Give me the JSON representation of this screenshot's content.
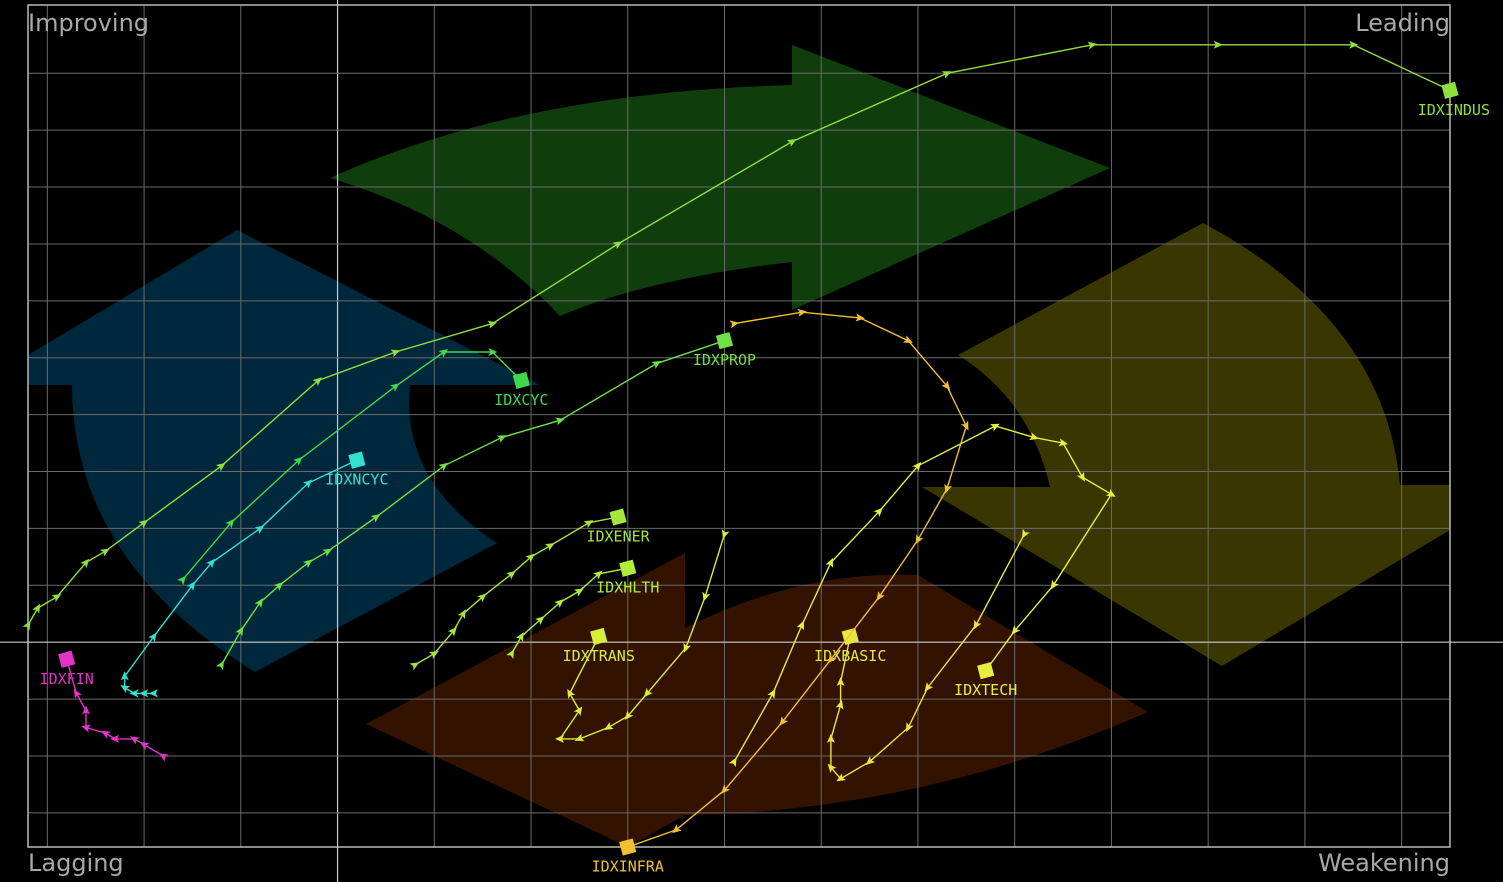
{
  "chart_data": {
    "type": "rrg",
    "quadrants": [
      "Improving",
      "Leading",
      "Lagging",
      "Weakening"
    ],
    "xlim": [
      -3.2,
      11.5
    ],
    "ylim": [
      -3.6,
      11.2
    ],
    "xticks": [
      -3,
      -2,
      -1,
      0,
      1,
      2,
      3,
      4,
      5,
      6,
      7,
      8,
      9,
      10,
      11
    ],
    "yticks": [
      -3,
      -2,
      -1,
      0,
      1,
      2,
      3,
      4,
      5,
      6,
      7,
      8,
      9,
      10
    ],
    "grid": true,
    "series": [
      {
        "name": "IDXINDUS",
        "color": "#8fe03c",
        "x": [
          -3.2,
          -3.1,
          -2.9,
          -2.6,
          -2.4,
          -2.0,
          -1.2,
          -0.2,
          0.6,
          1.6,
          2.9,
          4.7,
          6.3,
          7.8,
          9.1,
          10.5,
          11.5
        ],
        "y": [
          0.3,
          0.6,
          0.8,
          1.4,
          1.6,
          2.1,
          3.1,
          4.6,
          5.1,
          5.6,
          7.0,
          8.8,
          10.0,
          10.5,
          10.5,
          10.5,
          9.7
        ]
      },
      {
        "name": "IDXCYC",
        "color": "#3fd94a",
        "x": [
          -1.6,
          -1.1,
          -0.4,
          0.6,
          1.1,
          1.6,
          1.9
        ],
        "y": [
          1.1,
          2.1,
          3.2,
          4.5,
          5.1,
          5.1,
          4.6
        ]
      },
      {
        "name": "IDXNCYC",
        "color": "#33e0d0",
        "x": [
          -1.9,
          -2.0,
          -2.1,
          -2.2,
          -2.2,
          -1.9,
          -1.5,
          -1.3,
          -0.8,
          -0.3,
          0.2
        ],
        "y": [
          -0.9,
          -0.9,
          -0.9,
          -0.8,
          -0.6,
          0.1,
          1.0,
          1.4,
          2.0,
          2.8,
          3.2
        ]
      },
      {
        "name": "IDXPROP",
        "color": "#6fe045",
        "x": [
          -1.2,
          -1.0,
          -0.8,
          -0.6,
          -0.3,
          -0.1,
          0.4,
          1.1,
          1.7,
          2.3,
          3.3,
          4.0
        ],
        "y": [
          -0.4,
          0.2,
          0.7,
          1.0,
          1.4,
          1.6,
          2.2,
          3.1,
          3.6,
          3.9,
          4.9,
          5.3
        ]
      },
      {
        "name": "IDXFIN",
        "color": "#e033c8",
        "x": [
          -1.8,
          -2.0,
          -2.1,
          -2.3,
          -2.4,
          -2.6,
          -2.6,
          -2.7,
          -2.8
        ],
        "y": [
          -2.0,
          -1.8,
          -1.7,
          -1.7,
          -1.6,
          -1.5,
          -1.2,
          -0.9,
          -0.3
        ]
      },
      {
        "name": "IDXENER",
        "color": "#a6e63a",
        "x": [
          0.8,
          1.0,
          1.2,
          1.3,
          1.5,
          1.8,
          2.0,
          2.2,
          2.6,
          2.9
        ],
        "y": [
          -0.4,
          -0.2,
          0.2,
          0.5,
          0.8,
          1.2,
          1.5,
          1.7,
          2.1,
          2.2
        ]
      },
      {
        "name": "IDXHLTH",
        "color": "#b0ee3a",
        "x": [
          1.8,
          1.9,
          2.1,
          2.3,
          2.5,
          2.7,
          3.0
        ],
        "y": [
          -0.2,
          0.1,
          0.4,
          0.7,
          0.9,
          1.2,
          1.3
        ]
      },
      {
        "name": "IDXTRANS",
        "color": "#d8ee3a",
        "x": [
          4.0,
          3.8,
          3.6,
          3.2,
          3.0,
          2.8,
          2.5,
          2.3,
          2.5,
          2.4,
          2.7
        ],
        "y": [
          1.9,
          0.8,
          -0.1,
          -0.9,
          -1.3,
          -1.5,
          -1.7,
          -1.7,
          -1.2,
          -0.9,
          0.1
        ]
      },
      {
        "name": "IDXBASIC",
        "color": "#e8e83a",
        "x": [
          7.1,
          6.6,
          6.1,
          5.9,
          5.5,
          5.2,
          5.1,
          5.1,
          5.2,
          5.2,
          5.3
        ],
        "y": [
          1.9,
          0.3,
          -0.8,
          -1.5,
          -2.1,
          -2.4,
          -2.2,
          -1.7,
          -1.1,
          -0.7,
          0.1
        ]
      },
      {
        "name": "IDXTECH",
        "color": "#e6f03c",
        "x": [
          4.1,
          4.5,
          4.8,
          5.1,
          5.6,
          6.0,
          6.8,
          7.2,
          7.5,
          7.7,
          8.0,
          7.4,
          7.0,
          6.7
        ],
        "y": [
          -2.1,
          -0.9,
          0.3,
          1.4,
          2.3,
          3.1,
          3.8,
          3.6,
          3.5,
          2.9,
          2.6,
          1.0,
          0.2,
          -0.5
        ]
      },
      {
        "name": "IDXINFRA",
        "color": "#f0c030",
        "x": [
          4.1,
          4.8,
          5.4,
          5.9,
          6.3,
          6.5,
          6.3,
          6.0,
          5.6,
          5.1,
          4.6,
          4.0,
          3.5,
          3.0
        ],
        "y": [
          5.6,
          5.8,
          5.7,
          5.3,
          4.5,
          3.8,
          2.7,
          1.8,
          0.8,
          -0.3,
          -1.4,
          -2.6,
          -3.3,
          -3.6
        ]
      }
    ]
  }
}
